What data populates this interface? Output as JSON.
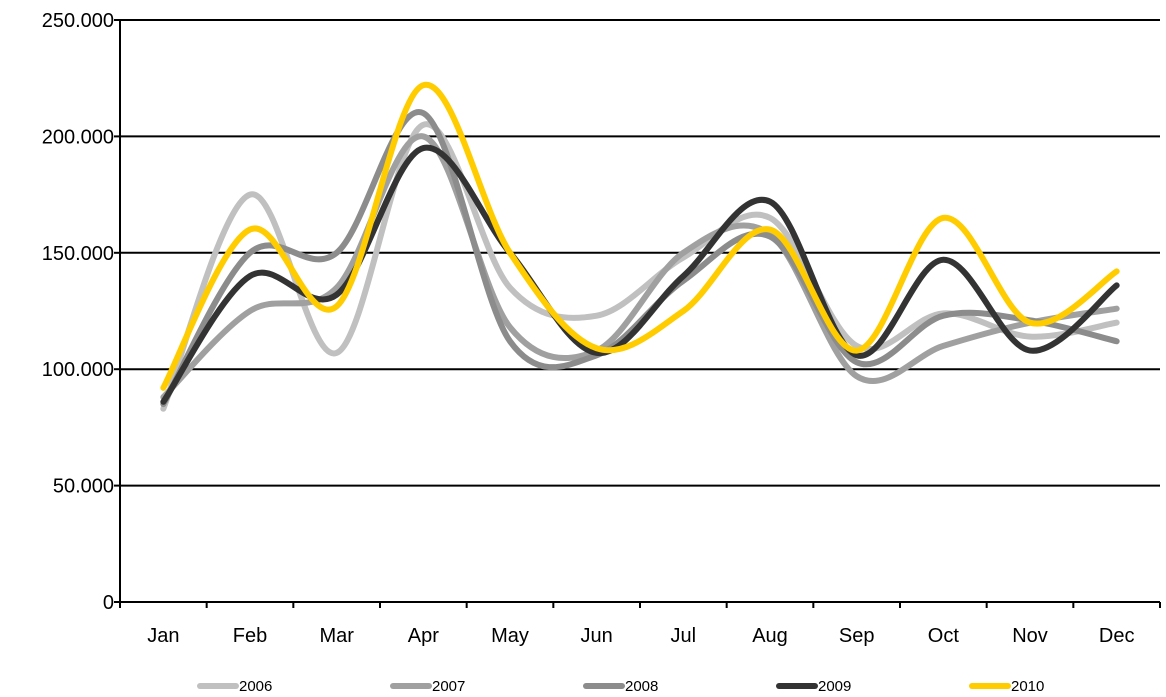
{
  "chart_data": {
    "type": "line",
    "title": "",
    "xlabel": "",
    "ylabel": "",
    "ylim": [
      0,
      250000
    ],
    "y_ticks": [
      0,
      50000,
      100000,
      150000,
      200000,
      250000
    ],
    "y_tick_labels": [
      "0",
      "50.000",
      "100.000",
      "150.000",
      "200.000",
      "250.000"
    ],
    "categories": [
      "Jan",
      "Feb",
      "Mar",
      "Apr",
      "May",
      "Jun",
      "Jul",
      "Aug",
      "Sep",
      "Oct",
      "Nov",
      "Dec"
    ],
    "grid": true,
    "legend_position": "bottom",
    "smooth": true,
    "series": [
      {
        "name": "2006",
        "color": "#c0c0c0",
        "values": [
          83000,
          175000,
          107000,
          205000,
          135000,
          123000,
          148000,
          165000,
          110000,
          124000,
          114000,
          120000
        ]
      },
      {
        "name": "2007",
        "color": "#a0a0a0",
        "values": [
          88000,
          125000,
          135000,
          200000,
          118000,
          108000,
          150000,
          158000,
          97000,
          110000,
          120000,
          126000
        ]
      },
      {
        "name": "2008",
        "color": "#8c8c8c",
        "values": [
          85000,
          150000,
          150000,
          210000,
          112000,
          106000,
          138000,
          157000,
          103000,
          123000,
          121000,
          112000
        ]
      },
      {
        "name": "2009",
        "color": "#333333",
        "values": [
          86000,
          140000,
          132000,
          195000,
          150000,
          107000,
          140000,
          172000,
          106000,
          147000,
          108000,
          136000
        ]
      },
      {
        "name": "2010",
        "color": "#ffcc00",
        "values": [
          92000,
          160000,
          127000,
          222000,
          150000,
          109000,
          125000,
          160000,
          108000,
          165000,
          120000,
          142000
        ]
      }
    ]
  }
}
